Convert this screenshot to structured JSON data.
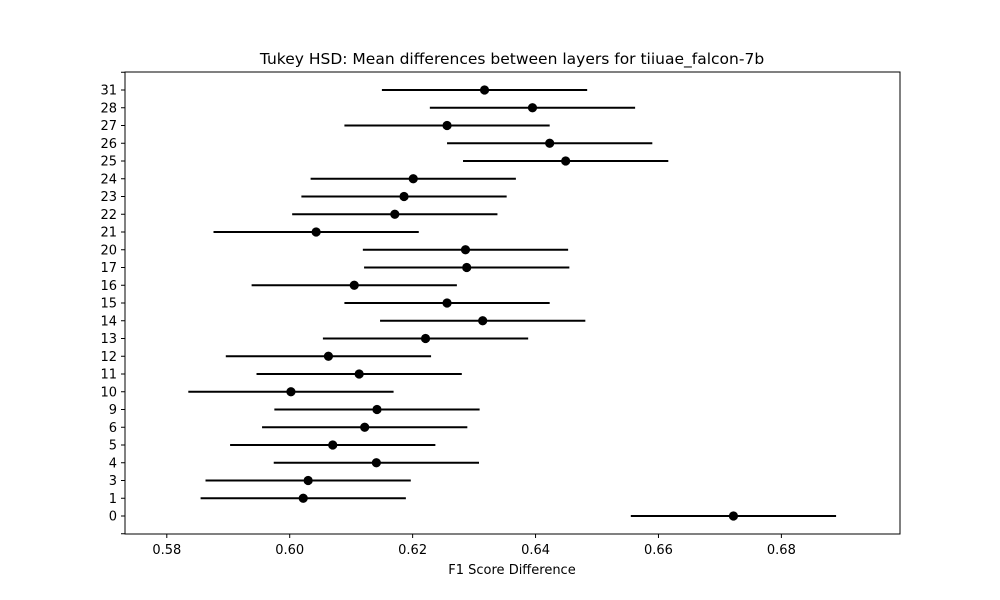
{
  "chart_data": {
    "type": "scatter",
    "title": "Tukey HSD: Mean differences between layers for tiiuae_falcon-7b",
    "xlabel": "F1 Score Difference",
    "ylabel": "",
    "xlim": [
      0.5732,
      0.6993
    ],
    "xticks": [
      "0.58",
      "0.60",
      "0.62",
      "0.64",
      "0.66",
      "0.68"
    ],
    "xtick_values": [
      0.58,
      0.6,
      0.62,
      0.64,
      0.66,
      0.68
    ],
    "grid": false,
    "marker_color": "#000000",
    "categories": [
      "0",
      "1",
      "3",
      "4",
      "5",
      "6",
      "9",
      "10",
      "11",
      "12",
      "13",
      "14",
      "15",
      "16",
      "17",
      "20",
      "21",
      "22",
      "23",
      "24",
      "25",
      "26",
      "27",
      "28",
      "31"
    ],
    "means": [
      0.6722,
      0.6022,
      0.603,
      0.6141,
      0.607,
      0.6122,
      0.6142,
      0.6002,
      0.6113,
      0.6063,
      0.6221,
      0.6314,
      0.6256,
      0.6105,
      0.6288,
      0.6286,
      0.6043,
      0.6171,
      0.6186,
      0.6201,
      0.6449,
      0.6423,
      0.6256,
      0.6395,
      0.6317
    ],
    "lower": [
      0.6555,
      0.5855,
      0.5863,
      0.5974,
      0.5903,
      0.5955,
      0.5975,
      0.5835,
      0.5946,
      0.5896,
      0.6054,
      0.6147,
      0.6089,
      0.5938,
      0.6121,
      0.6119,
      0.5876,
      0.6004,
      0.6019,
      0.6034,
      0.6282,
      0.6256,
      0.6089,
      0.6228,
      0.615
    ],
    "upper": [
      0.6889,
      0.6189,
      0.6197,
      0.6308,
      0.6237,
      0.6289,
      0.6309,
      0.6169,
      0.628,
      0.623,
      0.6388,
      0.6481,
      0.6423,
      0.6272,
      0.6455,
      0.6453,
      0.621,
      0.6338,
      0.6353,
      0.6368,
      0.6616,
      0.659,
      0.6423,
      0.6562,
      0.6484
    ]
  }
}
